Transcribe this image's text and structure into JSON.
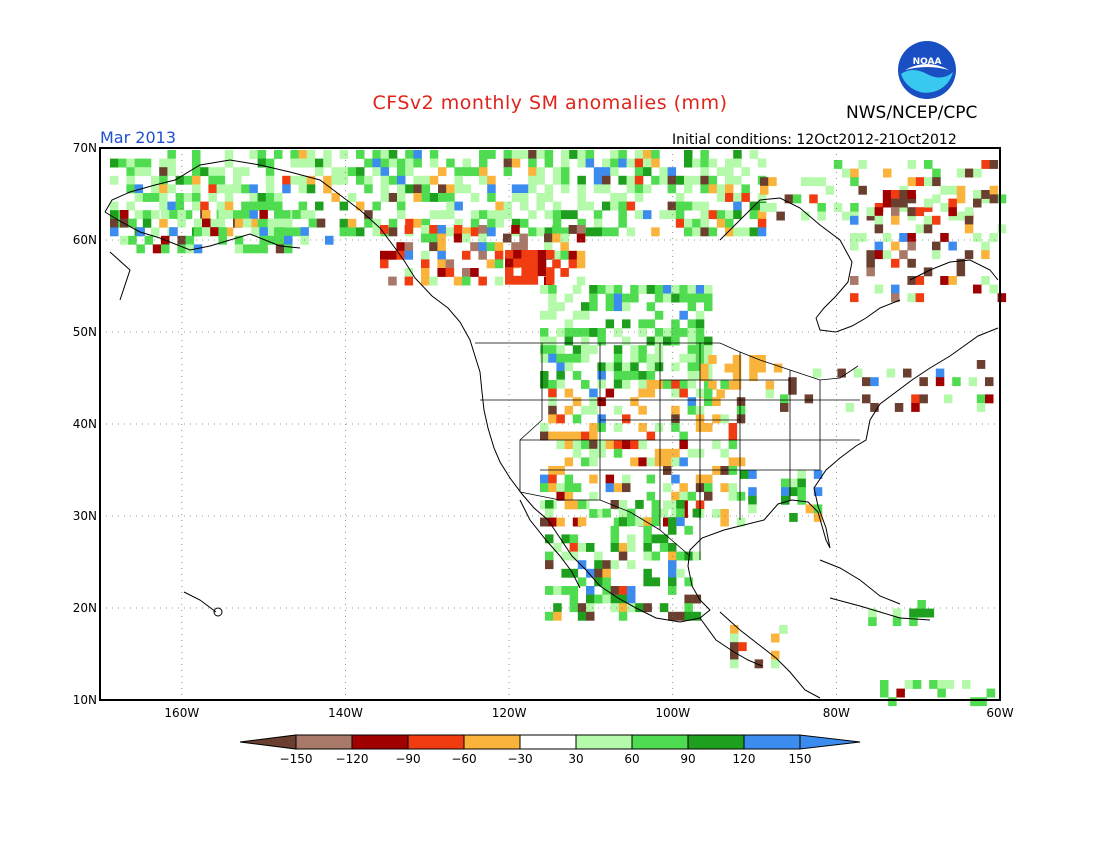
{
  "header": {
    "title": "CFSv2 monthly SM anomalies (mm)",
    "agency": "NWS/NCEP/CPC",
    "logo_text": "NOAA",
    "valid_month": "Mar 2013",
    "initial_conditions": "Initial conditions: 12Oct2012-21Oct2012"
  },
  "map": {
    "lat_labels": [
      "70N",
      "60N",
      "50N",
      "40N",
      "30N",
      "20N",
      "10N"
    ],
    "lon_labels": [
      "160W",
      "140W",
      "120W",
      "100W",
      "80W",
      "60W"
    ],
    "lat_range": [
      10,
      70
    ],
    "lon_range": [
      -170,
      -60
    ]
  },
  "colorbar": {
    "labels": [
      "-150",
      "-120",
      "-90",
      "-60",
      "-30",
      "30",
      "60",
      "90",
      "120",
      "150"
    ],
    "colors": [
      "#6b3f2f",
      "#a87868",
      "#a00000",
      "#f03c10",
      "#fab43c",
      "#ffffff",
      "#b4faaa",
      "#50dc50",
      "#1ea01e",
      "#3c8cf0",
      "#3c8cf0"
    ]
  },
  "palette": {
    "brown": "#6b3f2f",
    "mauve": "#a87868",
    "darkred": "#a00000",
    "red": "#f03c10",
    "orange": "#fab43c",
    "lightgreen": "#b4faaa",
    "green": "#50dc50",
    "darkgreen": "#1ea01e",
    "blue": "#3c8cf0"
  }
}
